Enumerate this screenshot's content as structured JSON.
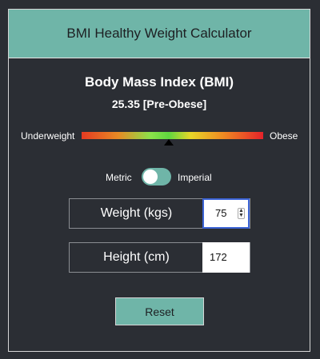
{
  "header": {
    "title": "BMI Healthy Weight Calculator"
  },
  "result": {
    "heading": "Body Mass Index (BMI)",
    "value_text": "25.35 [Pre-Obese]",
    "bmi": 25.35,
    "category": "Pre-Obese"
  },
  "scale": {
    "left_label": "Underweight",
    "right_label": "Obese",
    "marker_position": 0.48,
    "colors": [
      "#e53a22",
      "#e88a24",
      "#8be24a",
      "#5fd63f",
      "#e7d628",
      "#ef8a22",
      "#e5232a"
    ]
  },
  "units": {
    "metric_label": "Metric",
    "imperial_label": "Imperial",
    "selected": "Metric"
  },
  "weight": {
    "label": "Weight (kgs)",
    "value": "75"
  },
  "height": {
    "label": "Height (cm)",
    "value": "172"
  },
  "reset": {
    "label": "Reset"
  },
  "theme": {
    "accent": "#6fb5a8",
    "background": "#2b2e34",
    "focus": "#3b63d4"
  }
}
